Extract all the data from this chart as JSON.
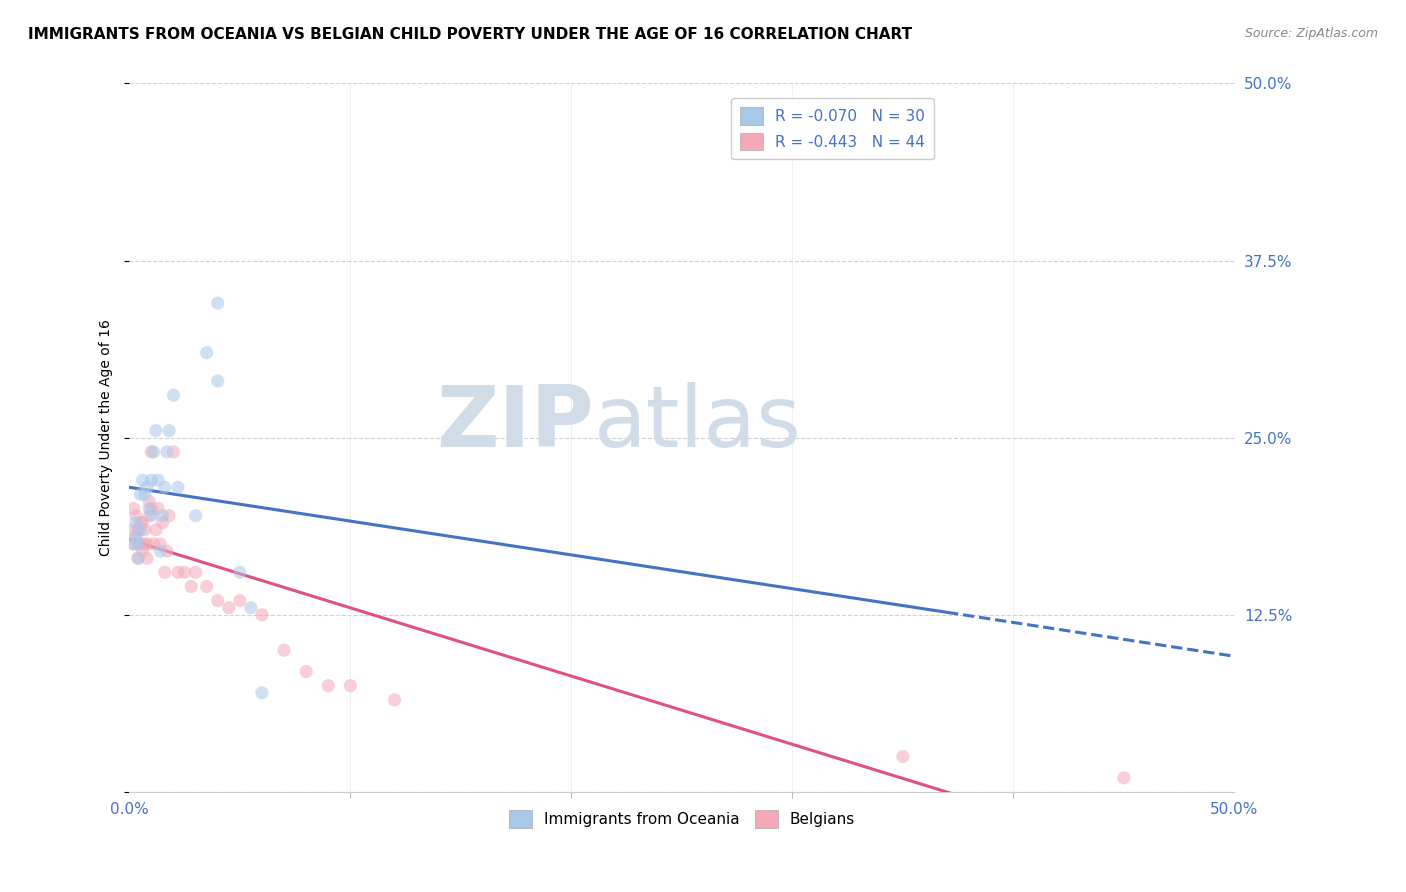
{
  "title": "IMMIGRANTS FROM OCEANIA VS BELGIAN CHILD POVERTY UNDER THE AGE OF 16 CORRELATION CHART",
  "source": "Source: ZipAtlas.com",
  "ylabel": "Child Poverty Under the Age of 16",
  "xlim": [
    0.0,
    0.5
  ],
  "ylim": [
    0.0,
    0.5
  ],
  "yticks": [
    0.0,
    0.125,
    0.25,
    0.375,
    0.5
  ],
  "ytick_labels": [
    "",
    "12.5%",
    "25.0%",
    "37.5%",
    "50.0%"
  ],
  "xtick_positions": [
    0.0,
    0.5
  ],
  "xtick_labels": [
    "0.0%",
    "50.0%"
  ],
  "xtick_minor_positions": [
    0.1,
    0.2,
    0.3,
    0.4
  ],
  "blue_label": "Immigrants from Oceania",
  "pink_label": "Belgians",
  "blue_R": "R = -0.070",
  "blue_N": "N = 30",
  "pink_R": "R = -0.443",
  "pink_N": "N = 44",
  "blue_color": "#a8c8e8",
  "pink_color": "#f4a8b8",
  "trend_blue": "#4472c4",
  "trend_pink": "#e05080",
  "blue_scatter_x": [
    0.002,
    0.003,
    0.003,
    0.004,
    0.004,
    0.005,
    0.005,
    0.006,
    0.007,
    0.008,
    0.009,
    0.01,
    0.01,
    0.011,
    0.012,
    0.013,
    0.014,
    0.015,
    0.016,
    0.017,
    0.018,
    0.02,
    0.022,
    0.03,
    0.035,
    0.04,
    0.04,
    0.05,
    0.055,
    0.06
  ],
  "blue_scatter_y": [
    0.175,
    0.18,
    0.19,
    0.175,
    0.165,
    0.21,
    0.185,
    0.22,
    0.21,
    0.215,
    0.2,
    0.22,
    0.195,
    0.24,
    0.255,
    0.22,
    0.17,
    0.195,
    0.215,
    0.24,
    0.255,
    0.28,
    0.215,
    0.195,
    0.31,
    0.345,
    0.29,
    0.155,
    0.13,
    0.07
  ],
  "pink_scatter_x": [
    0.001,
    0.002,
    0.002,
    0.003,
    0.003,
    0.004,
    0.004,
    0.005,
    0.005,
    0.006,
    0.006,
    0.007,
    0.007,
    0.008,
    0.008,
    0.009,
    0.009,
    0.01,
    0.01,
    0.011,
    0.012,
    0.013,
    0.014,
    0.015,
    0.016,
    0.017,
    0.018,
    0.02,
    0.022,
    0.025,
    0.028,
    0.03,
    0.035,
    0.04,
    0.045,
    0.05,
    0.06,
    0.07,
    0.08,
    0.09,
    0.1,
    0.12,
    0.35,
    0.45
  ],
  "pink_scatter_y": [
    0.185,
    0.175,
    0.2,
    0.18,
    0.195,
    0.165,
    0.185,
    0.175,
    0.19,
    0.17,
    0.19,
    0.175,
    0.185,
    0.165,
    0.175,
    0.205,
    0.195,
    0.24,
    0.2,
    0.175,
    0.185,
    0.2,
    0.175,
    0.19,
    0.155,
    0.17,
    0.195,
    0.24,
    0.155,
    0.155,
    0.145,
    0.155,
    0.145,
    0.135,
    0.13,
    0.135,
    0.125,
    0.1,
    0.085,
    0.075,
    0.075,
    0.065,
    0.025,
    0.01
  ],
  "background_color": "#ffffff",
  "grid_color": "#cccccc",
  "watermark_zip": "ZIP",
  "watermark_atlas": "atlas",
  "watermark_color": "#d0dce8",
  "title_fontsize": 11,
  "axis_label_fontsize": 10,
  "tick_fontsize": 11,
  "legend_fontsize": 11,
  "marker_size": 90,
  "marker_alpha": 0.55,
  "blue_trend_x_max_solid": 0.37,
  "blue_trend_x_max_dash": 0.5,
  "pink_trend_x_max": 0.45
}
